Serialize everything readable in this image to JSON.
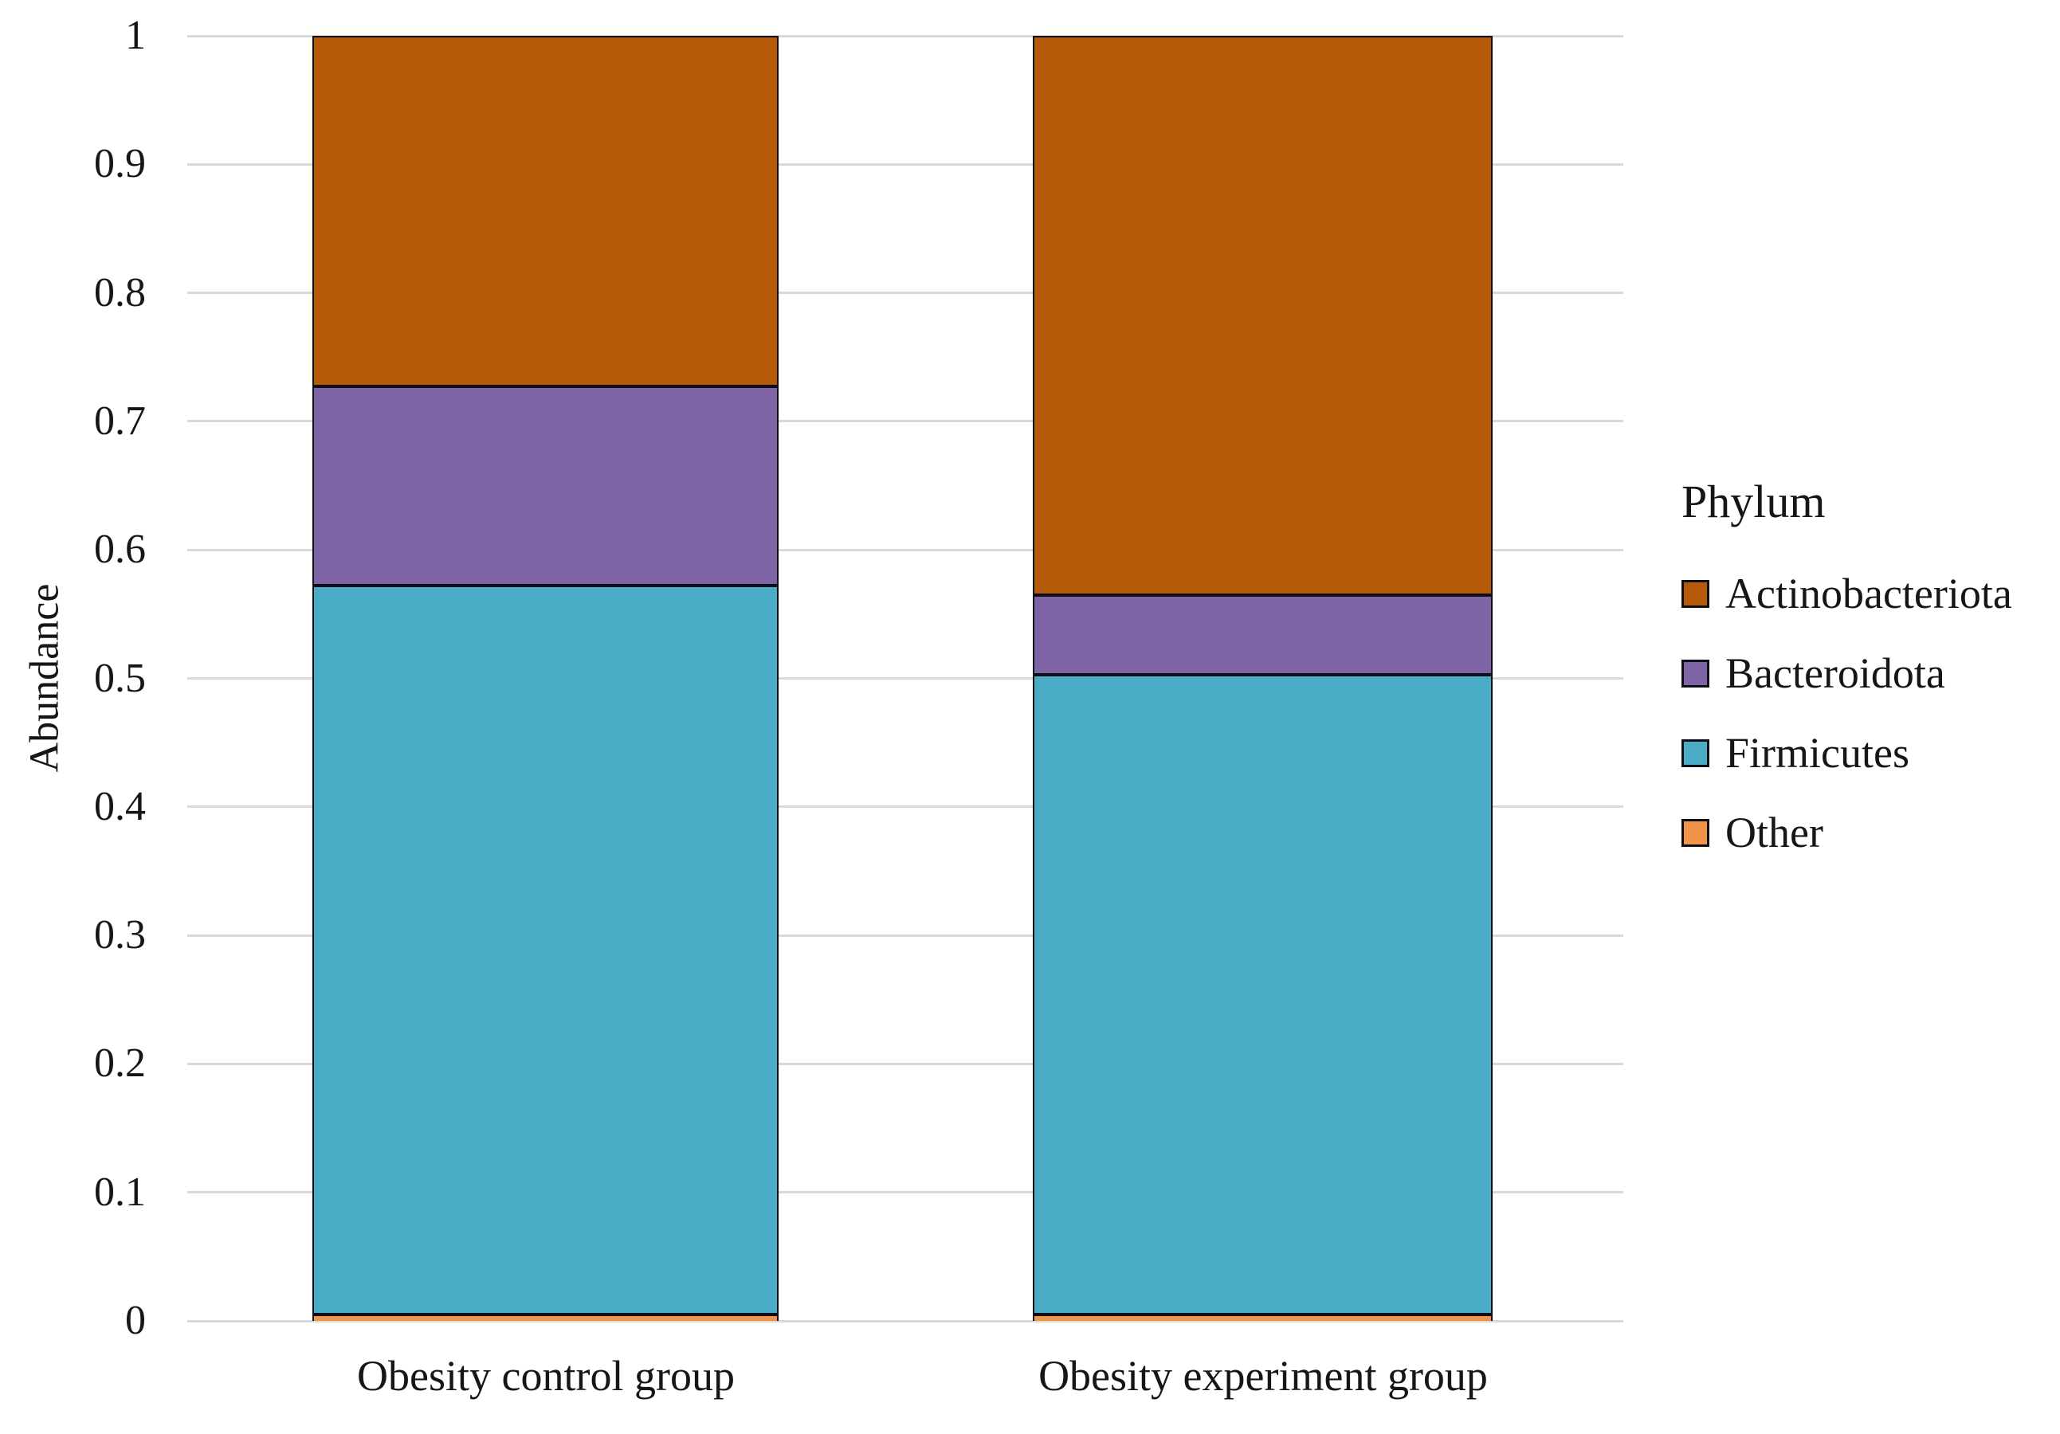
{
  "chart_data": {
    "type": "bar",
    "stacked": true,
    "title": "",
    "xlabel": "",
    "ylabel": "Abundance",
    "categories": [
      "Obesity control group",
      "Obesity experiment group"
    ],
    "series": [
      {
        "name": "Other",
        "color": "#F0944A",
        "values": [
          0.005,
          0.005
        ]
      },
      {
        "name": "Firmicutes",
        "color": "#4AACC5",
        "values": [
          0.567,
          0.498
        ]
      },
      {
        "name": "Bacteroidota",
        "color": "#7E64A5",
        "values": [
          0.155,
          0.062
        ]
      },
      {
        "name": "Actinobacteriota",
        "color": "#B55A08",
        "values": [
          0.273,
          0.435
        ]
      }
    ],
    "ylim": [
      0,
      1
    ],
    "yticks": [
      0,
      0.1,
      0.2,
      0.3,
      0.4,
      0.5,
      0.6,
      0.7,
      0.8,
      0.9,
      1
    ],
    "ytick_labels": [
      "0",
      "0.1",
      "0.2",
      "0.3",
      "0.4",
      "0.5",
      "0.6",
      "0.7",
      "0.8",
      "0.9",
      "1"
    ],
    "grid": true,
    "legend": {
      "title": "Phylum",
      "position": "right",
      "order_top_to_bottom": [
        "Actinobacteriota",
        "Bacteroidota",
        "Firmicutes",
        "Other"
      ]
    }
  },
  "colors": {
    "grid": "#d9d9d9",
    "segment_border": "#0e0e18",
    "text": "#161616",
    "background": "#ffffff"
  }
}
